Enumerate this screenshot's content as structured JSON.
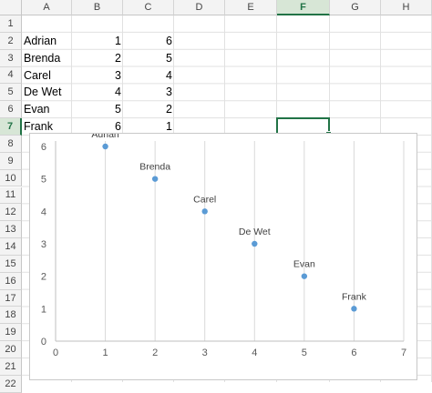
{
  "columns": [
    "A",
    "B",
    "C",
    "D",
    "E",
    "F",
    "G",
    "H"
  ],
  "selected_column": "F",
  "rows": [
    "1",
    "2",
    "3",
    "4",
    "5",
    "6",
    "7",
    "8",
    "9",
    "10",
    "11",
    "12",
    "13",
    "14",
    "15",
    "16",
    "17",
    "18",
    "19",
    "20",
    "21",
    "22"
  ],
  "selected_row": "7",
  "table": [
    {
      "name": "Adrian",
      "b": "1",
      "c": "6"
    },
    {
      "name": "Brenda",
      "b": "2",
      "c": "5"
    },
    {
      "name": "Carel",
      "b": "3",
      "c": "4"
    },
    {
      "name": "De Wet",
      "b": "4",
      "c": "3"
    },
    {
      "name": "Evan",
      "b": "5",
      "c": "2"
    },
    {
      "name": "Frank",
      "b": "6",
      "c": "1"
    }
  ],
  "chart_data": {
    "type": "scatter",
    "points": [
      {
        "label": "Adrian",
        "x": 1,
        "y": 6
      },
      {
        "label": "Brenda",
        "x": 2,
        "y": 5
      },
      {
        "label": "Carel",
        "x": 3,
        "y": 4
      },
      {
        "label": "De Wet",
        "x": 4,
        "y": 3
      },
      {
        "label": "Evan",
        "x": 5,
        "y": 2
      },
      {
        "label": "Frank",
        "x": 6,
        "y": 1
      }
    ],
    "xlim": [
      0,
      7
    ],
    "ylim": [
      0,
      6
    ],
    "x_ticks": [
      "0",
      "1",
      "2",
      "3",
      "4",
      "5",
      "6",
      "7"
    ],
    "y_ticks": [
      "0",
      "1",
      "2",
      "3",
      "4",
      "5",
      "6"
    ],
    "grid": "vertical",
    "marker_color": "#5b9bd5",
    "grid_color": "#d9d9d9",
    "title": "",
    "xlabel": "",
    "ylabel": ""
  }
}
